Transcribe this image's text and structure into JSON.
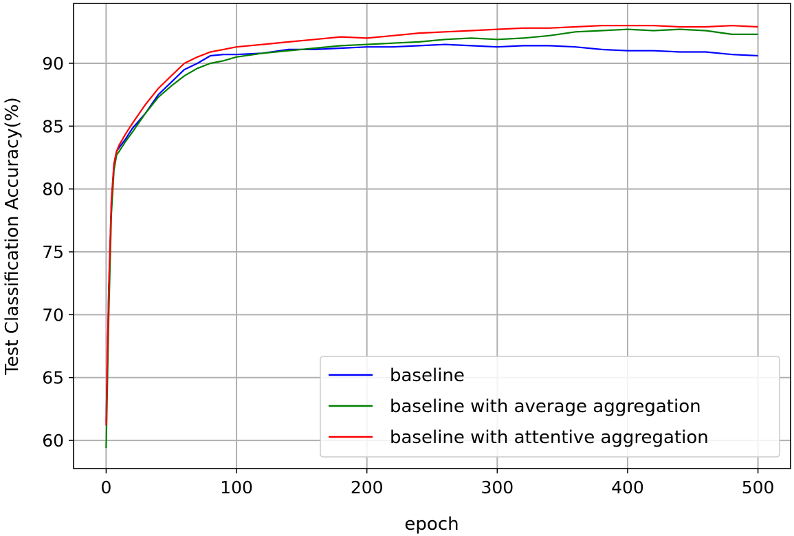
{
  "chart_data": {
    "type": "line",
    "title": "",
    "xlabel": "epoch",
    "ylabel": "Test Classification Accuracy(%)",
    "xlim": [
      -25,
      525
    ],
    "ylim": [
      57.76,
      94.76
    ],
    "xticks": [
      0,
      100,
      200,
      300,
      400,
      500
    ],
    "yticks": [
      60,
      65,
      70,
      75,
      80,
      85,
      90
    ],
    "grid": true,
    "legend_position": "lower-right",
    "x": [
      0,
      2,
      4,
      6,
      8,
      10,
      15,
      20,
      30,
      40,
      50,
      60,
      70,
      80,
      90,
      100,
      120,
      140,
      160,
      180,
      200,
      220,
      240,
      260,
      280,
      300,
      320,
      340,
      360,
      380,
      400,
      420,
      440,
      460,
      480,
      500
    ],
    "series": [
      {
        "name": "baseline",
        "color": "#0000ff",
        "values": [
          61.5,
          72,
          79,
          82,
          83,
          83.3,
          84,
          84.8,
          86,
          87.5,
          88.5,
          89.5,
          90,
          90.6,
          90.7,
          90.7,
          90.8,
          91.1,
          91.1,
          91.2,
          91.3,
          91.3,
          91.4,
          91.5,
          91.4,
          91.3,
          91.4,
          91.4,
          91.3,
          91.1,
          91.0,
          91.0,
          90.9,
          90.9,
          90.7,
          90.6
        ]
      },
      {
        "name": "baseline with average aggregation",
        "color": "#008000",
        "values": [
          59.4,
          70,
          78,
          81.5,
          82.7,
          83,
          83.8,
          84.5,
          86,
          87.3,
          88.2,
          89,
          89.6,
          90,
          90.2,
          90.5,
          90.8,
          91,
          91.2,
          91.4,
          91.5,
          91.6,
          91.7,
          91.9,
          92.0,
          91.9,
          92.0,
          92.2,
          92.5,
          92.6,
          92.7,
          92.6,
          92.7,
          92.6,
          92.3,
          92.3
        ]
      },
      {
        "name": "baseline with attentive aggregation",
        "color": "#ff0000",
        "values": [
          61.2,
          72,
          79,
          82,
          83,
          83.5,
          84.4,
          85.2,
          86.7,
          88,
          89,
          90,
          90.5,
          90.9,
          91.1,
          91.3,
          91.5,
          91.7,
          91.9,
          92.1,
          92.0,
          92.2,
          92.4,
          92.5,
          92.6,
          92.7,
          92.8,
          92.8,
          92.9,
          93.0,
          93.0,
          93.0,
          92.9,
          92.9,
          93.0,
          92.9
        ]
      }
    ]
  }
}
